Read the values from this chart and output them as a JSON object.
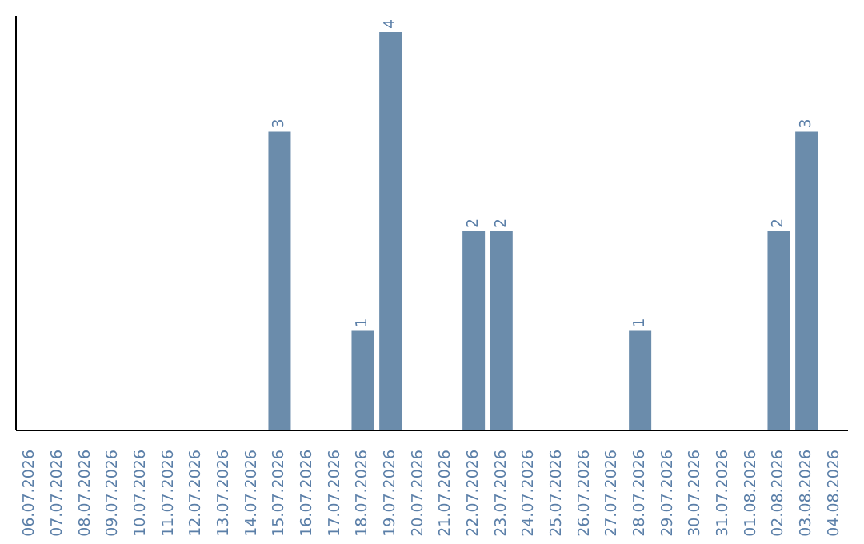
{
  "chart_data": {
    "type": "bar",
    "categories": [
      "06.07.2026",
      "07.07.2026",
      "08.07.2026",
      "09.07.2026",
      "10.07.2026",
      "11.07.2026",
      "12.07.2026",
      "13.07.2026",
      "14.07.2026",
      "15.07.2026",
      "16.07.2026",
      "17.07.2026",
      "18.07.2026",
      "19.07.2026",
      "20.07.2026",
      "21.07.2026",
      "22.07.2026",
      "23.07.2026",
      "24.07.2026",
      "25.07.2026",
      "26.07.2026",
      "27.07.2026",
      "28.07.2026",
      "29.07.2026",
      "30.07.2026",
      "31.07.2026",
      "01.08.2026",
      "02.08.2026",
      "03.08.2026",
      "04.08.2026"
    ],
    "values": [
      0,
      0,
      0,
      0,
      0,
      0,
      0,
      0,
      0,
      3,
      0,
      0,
      1,
      4,
      0,
      0,
      2,
      2,
      0,
      0,
      0,
      0,
      1,
      0,
      0,
      0,
      0,
      2,
      3,
      0
    ],
    "value_labels": [
      null,
      null,
      null,
      null,
      null,
      null,
      null,
      null,
      null,
      "3",
      null,
      null,
      "1",
      "4",
      null,
      null,
      "2",
      "2",
      null,
      null,
      null,
      null,
      "1",
      null,
      null,
      null,
      null,
      "2",
      "3",
      null
    ],
    "color": "#6b8cab",
    "ylim": [
      0,
      4.16
    ],
    "tick_labels": "x"
  }
}
